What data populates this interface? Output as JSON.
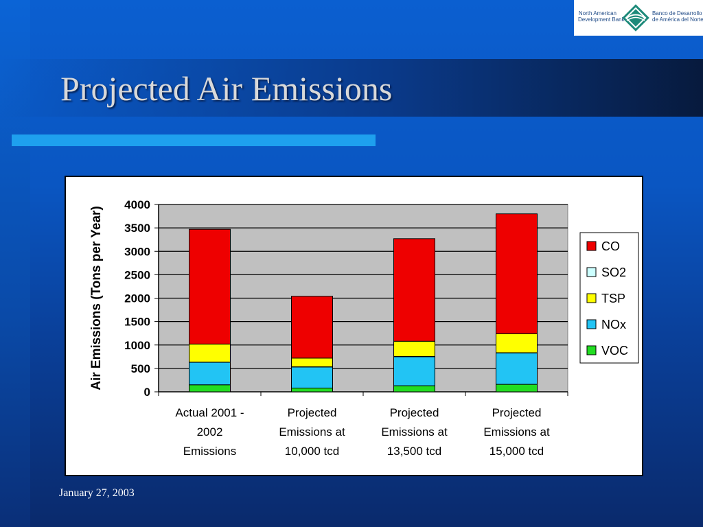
{
  "slide": {
    "title": "Projected Air Emissions",
    "date": "January 27, 2003",
    "logo": {
      "left_text_lines": [
        "North American",
        "Development Bank"
      ],
      "right_text_lines": [
        "Banco de Desarrollo",
        "de América del Norte"
      ]
    }
  },
  "colors": {
    "accent_bar": "#1ea0ee",
    "plot_background": "#c0c0c0"
  },
  "chart_data": {
    "type": "bar",
    "stacked": true,
    "categories": [
      [
        "Actual 2001 -",
        "2002",
        "Emissions"
      ],
      [
        "Projected",
        "Emissions at",
        "10,000 tcd"
      ],
      [
        "Projected",
        "Emissions at",
        "13,500 tcd"
      ],
      [
        "Projected",
        "Emissions at",
        "15,000 tcd"
      ]
    ],
    "series": [
      {
        "name": "VOC",
        "color": "#22dd22",
        "values": [
          150,
          80,
          130,
          160
        ]
      },
      {
        "name": "NOx",
        "color": "#22c4f4",
        "values": [
          480,
          450,
          620,
          670
        ]
      },
      {
        "name": "SO2",
        "color": "#ccffff",
        "values": [
          5,
          5,
          5,
          5
        ]
      },
      {
        "name": "TSP",
        "color": "#ffff00",
        "values": [
          385,
          185,
          325,
          405
        ]
      },
      {
        "name": "CO",
        "color": "#ee0000",
        "values": [
          2450,
          1320,
          2190,
          2560
        ]
      }
    ],
    "legend_order": [
      "CO",
      "SO2",
      "TSP",
      "NOx",
      "VOC"
    ],
    "ylabel": "Air Emissions (Tons per Year)",
    "ylim": [
      0,
      4000
    ],
    "yticks": [
      0,
      500,
      1000,
      1500,
      2000,
      2500,
      3000,
      3500,
      4000
    ],
    "grid": true,
    "legend_position": "right"
  }
}
